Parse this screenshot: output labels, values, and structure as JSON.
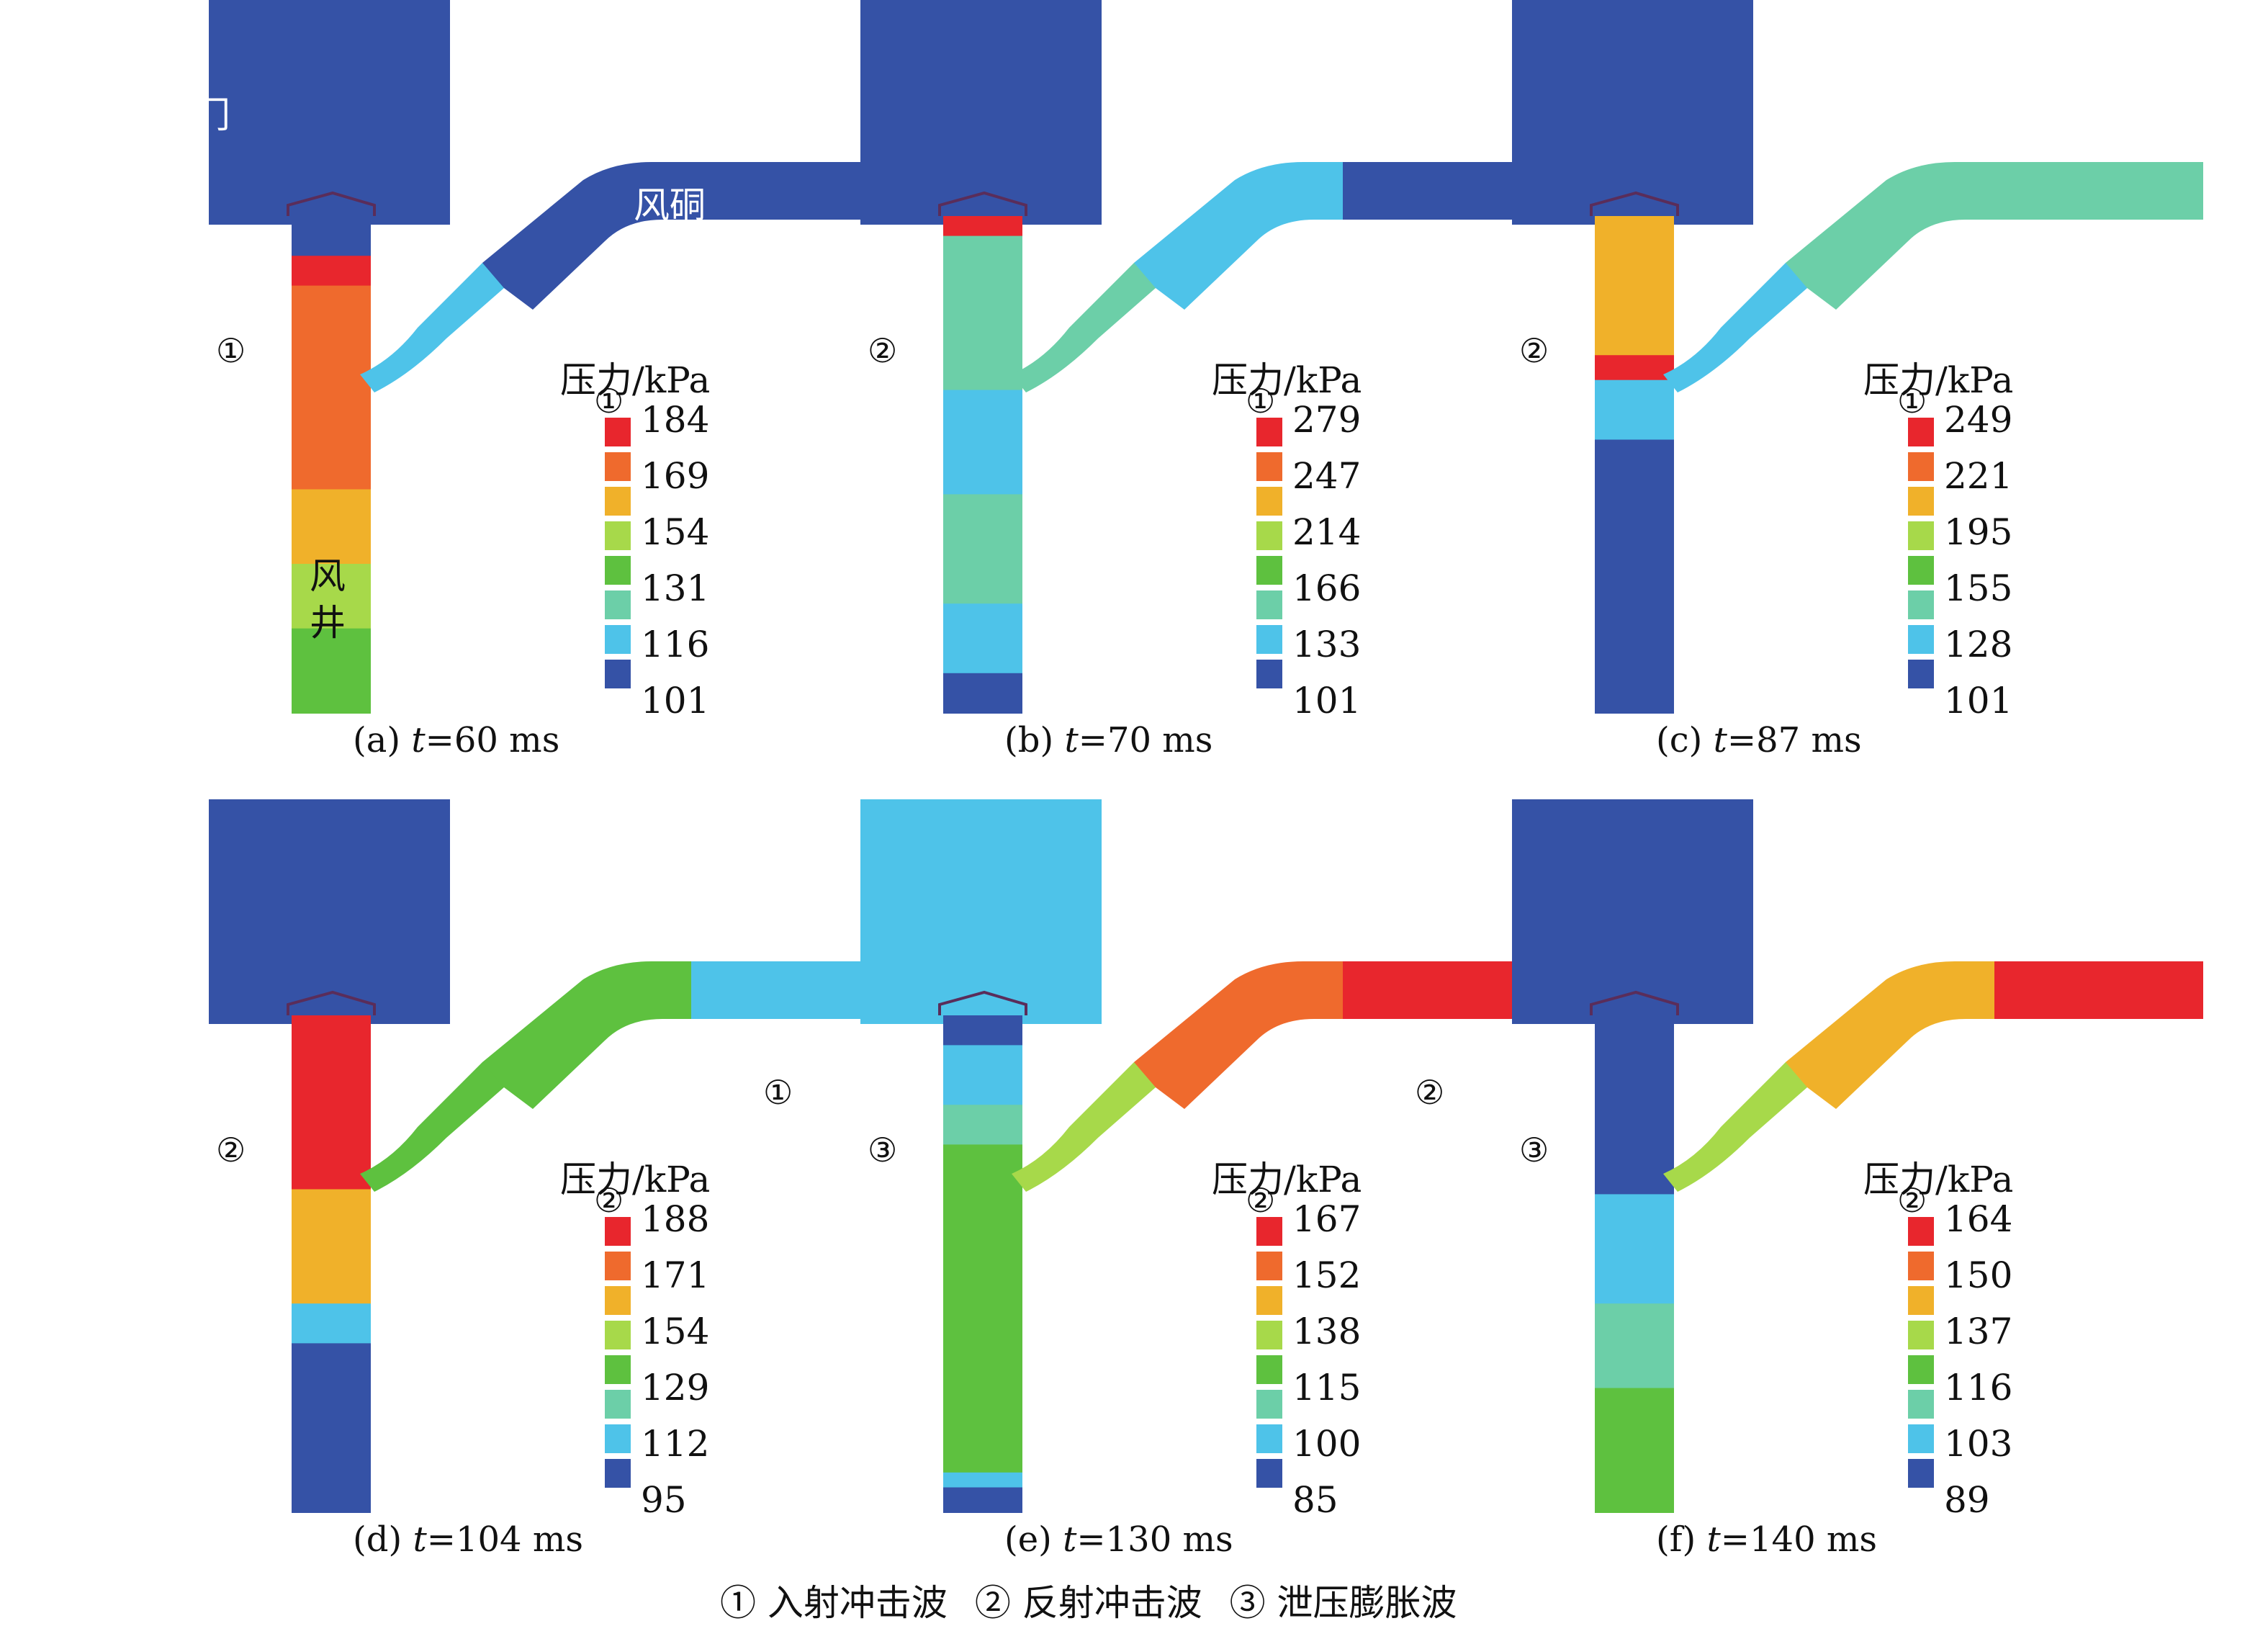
{
  "legend_title": "压力/kPa",
  "colors": {
    "c0": "#3552a6",
    "c1": "#4ec3e9",
    "c2": "#6ccfa8",
    "c3": "#5ec13f",
    "c4": "#a7d94a",
    "c5": "#f0b12a",
    "c6": "#ef6a2d",
    "c7": "#e8262d"
  },
  "labels": {
    "door": "防爆门",
    "shaft": "风井",
    "shaft_top": "风",
    "shaft_bottom": "井",
    "duct": "风硐"
  },
  "panels": [
    {
      "id": "a",
      "caption_prefix": "(a) ",
      "caption_var": "t",
      "caption_value": "=60 ms",
      "scale_ticks": [
        "184",
        "169",
        "154",
        "131",
        "116",
        "101"
      ],
      "callouts": [
        "①",
        "①"
      ]
    },
    {
      "id": "b",
      "caption_prefix": "(b) ",
      "caption_var": "t",
      "caption_value": "=70 ms",
      "scale_ticks": [
        "279",
        "247",
        "214",
        "166",
        "133",
        "101"
      ],
      "callouts": [
        "②",
        "①"
      ]
    },
    {
      "id": "c",
      "caption_prefix": "(c) ",
      "caption_var": "t",
      "caption_value": "=87 ms",
      "scale_ticks": [
        "249",
        "221",
        "195",
        "155",
        "128",
        "101"
      ],
      "callouts": [
        "②",
        "①"
      ]
    },
    {
      "id": "d",
      "caption_prefix": "(d) ",
      "caption_var": "t",
      "caption_value": "=104 ms",
      "scale_ticks": [
        "188",
        "171",
        "154",
        "129",
        "112",
        "95"
      ],
      "callouts": [
        "②",
        "②",
        "①"
      ]
    },
    {
      "id": "e",
      "caption_prefix": "(e) ",
      "caption_var": "t",
      "caption_value": "=130 ms",
      "scale_ticks": [
        "167",
        "152",
        "138",
        "115",
        "100",
        "85"
      ],
      "callouts": [
        "③",
        "②",
        "②"
      ]
    },
    {
      "id": "f",
      "caption_prefix": "(f) ",
      "caption_var": "t",
      "caption_value": "=140 ms",
      "scale_ticks": [
        "164",
        "150",
        "137",
        "116",
        "103",
        "89"
      ],
      "callouts": [
        "③",
        "②"
      ]
    }
  ],
  "bottom_legend": [
    "① 入射冲击波",
    "② 反射冲击波",
    "③ 泄压膨胀波"
  ]
}
